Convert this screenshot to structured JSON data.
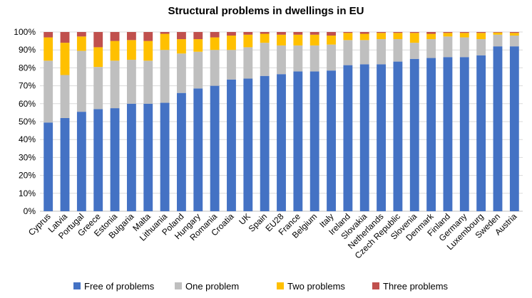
{
  "chart_data": {
    "type": "bar",
    "stacked": true,
    "title": "Structural problems in dwellings in EU",
    "xlabel": "",
    "ylabel": "",
    "ylim": [
      0,
      100
    ],
    "yticks": [
      0,
      10,
      20,
      30,
      40,
      50,
      60,
      70,
      80,
      90,
      100
    ],
    "ytick_suffix": "%",
    "legend_position": "bottom",
    "grid": true,
    "categories": [
      "Cyprus",
      "Latvia",
      "Portugal",
      "Greece",
      "Estonia",
      "Bulgaria",
      "Malta",
      "Lithuania",
      "Poland",
      "Hungary",
      "Romania",
      "Croatia",
      "UK",
      "Spain",
      "EU28",
      "France",
      "Belgium",
      "Italy",
      "Ireland",
      "Slovakia",
      "Netherlands",
      "Czech Republic",
      "Slovenia",
      "Denmark",
      "Finland",
      "Germany",
      "Luxembourg",
      "Sweden",
      "Austria"
    ],
    "series": [
      {
        "name": "Free of problems",
        "color": "#4472c4",
        "values": [
          49.5,
          52,
          55.5,
          57,
          57.5,
          60,
          60,
          60.5,
          66,
          68.5,
          70,
          73.5,
          74,
          75.5,
          76.5,
          78,
          78,
          78.5,
          81.5,
          82,
          82,
          83.5,
          85,
          85.5,
          86,
          86,
          87,
          92,
          92
        ]
      },
      {
        "name": "One problem",
        "color": "#bfbfbf",
        "values": [
          34.5,
          24,
          34,
          23.5,
          26.5,
          24.5,
          24,
          29.5,
          22,
          20.5,
          20,
          16.5,
          17.5,
          18.5,
          16,
          14.5,
          14.5,
          14.5,
          14,
          13.5,
          14,
          12.5,
          9,
          10.5,
          11.5,
          11,
          9,
          6.5,
          6
        ]
      },
      {
        "name": "Two problems",
        "color": "#ffc000",
        "values": [
          13,
          18,
          8,
          11,
          11,
          11,
          11,
          9,
          8,
          7,
          7,
          8,
          7,
          5,
          6,
          6,
          6,
          5,
          4,
          3.5,
          3.5,
          3.5,
          5.5,
          3,
          2,
          2.5,
          3.5,
          1.2,
          1.5
        ]
      },
      {
        "name": "Three problems",
        "color": "#c0504d",
        "values": [
          3,
          6,
          2.5,
          8.5,
          5,
          4.5,
          5,
          1,
          4,
          4,
          3,
          2,
          1.5,
          1,
          1.5,
          1.5,
          1.5,
          2,
          0.5,
          1,
          0.5,
          0.5,
          0.5,
          1,
          0.5,
          0.5,
          0.5,
          0.3,
          0.5
        ]
      }
    ]
  }
}
